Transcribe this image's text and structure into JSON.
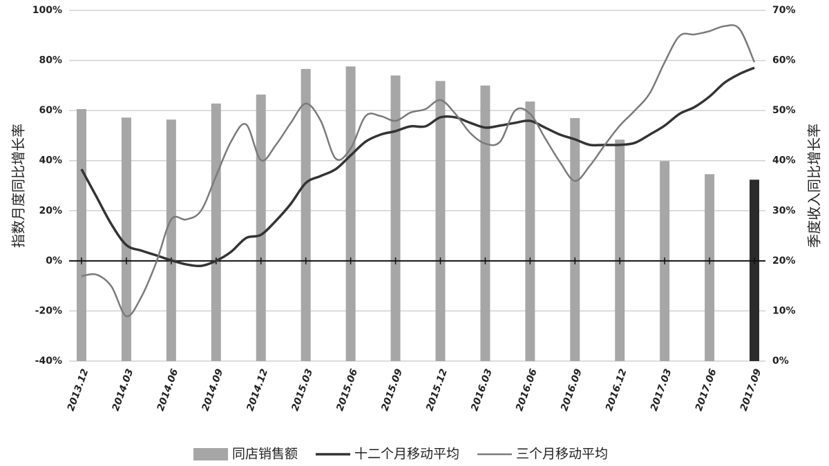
{
  "chart_data": {
    "type": "combo",
    "y_label": "指数月度同比增长率",
    "y2_label": "季度收入同比增长率",
    "categories": [
      "2013.12",
      null,
      null,
      "2014.03",
      null,
      null,
      "2014.06",
      null,
      null,
      "2014.09",
      null,
      null,
      "2014.12",
      null,
      null,
      "2015.03",
      null,
      null,
      "2015.06",
      null,
      null,
      "2015.09",
      null,
      null,
      "2015.12",
      null,
      null,
      "2016.03",
      null,
      null,
      "2016.06",
      null,
      null,
      "2016.09",
      null,
      null,
      "2016.12",
      null,
      null,
      "2017.03",
      null,
      null,
      "2017.06",
      null,
      null,
      "2017.09"
    ],
    "series": [
      {
        "name": "同店销售额",
        "type": "bar",
        "axis": "y2",
        "color": "#a6a6a6",
        "values": [
          50.3,
          null,
          null,
          48.6,
          null,
          null,
          48.2,
          null,
          null,
          51.4,
          null,
          null,
          53.2,
          null,
          null,
          58.3,
          null,
          null,
          58.8,
          null,
          null,
          57.0,
          null,
          null,
          55.9,
          null,
          null,
          55.0,
          null,
          null,
          51.8,
          null,
          null,
          48.5,
          null,
          null,
          44.2,
          null,
          null,
          39.9,
          null,
          null,
          37.3,
          null,
          null,
          36.2
        ],
        "colors": [
          "#a6a6a6",
          null,
          null,
          "#a6a6a6",
          null,
          null,
          "#a6a6a6",
          null,
          null,
          "#a6a6a6",
          null,
          null,
          "#a6a6a6",
          null,
          null,
          "#a6a6a6",
          null,
          null,
          "#a6a6a6",
          null,
          null,
          "#a6a6a6",
          null,
          null,
          "#a6a6a6",
          null,
          null,
          "#a6a6a6",
          null,
          null,
          "#a6a6a6",
          null,
          null,
          "#a6a6a6",
          null,
          null,
          "#a6a6a6",
          null,
          null,
          "#a6a6a6",
          null,
          null,
          "#a6a6a6",
          null,
          null,
          "#2b2b2b"
        ]
      },
      {
        "name": "十二个月移动平均",
        "type": "line",
        "color": "#333333",
        "values": [
          36.6,
          25.6,
          14.6,
          6.3,
          4.1,
          2.2,
          0.2,
          -1.4,
          -2,
          0,
          3.6,
          9.1,
          10.4,
          16,
          22.8,
          31.1,
          33.9,
          36.6,
          42.1,
          47.6,
          50.4,
          51.8,
          53.7,
          53.7,
          57.3,
          57.3,
          55.1,
          53.2,
          54,
          55.1,
          55.9,
          53.2,
          50.4,
          48.5,
          46.3,
          46.3,
          46.3,
          47.1,
          50.4,
          54,
          58.7,
          61.4,
          65.6,
          71.1,
          74.6,
          77.1
        ]
      },
      {
        "name": "三个月移动平均",
        "type": "line",
        "color": "#7a7a7a",
        "values": [
          -6.1,
          -5.5,
          -10.2,
          -22.1,
          -14.4,
          -0.6,
          16.5,
          16.5,
          20.1,
          33.9,
          47.6,
          54.5,
          40.2,
          46.3,
          55.1,
          62.8,
          55.9,
          40.8,
          44.9,
          57.8,
          57.8,
          55.9,
          59.2,
          60.6,
          64.2,
          58.7,
          51,
          46.8,
          47.6,
          60,
          58.7,
          49,
          39.4,
          31.9,
          38,
          46.3,
          54,
          60,
          66.9,
          79.3,
          89.8,
          90.4,
          91.7,
          93.7,
          92.6,
          79.3
        ]
      }
    ],
    "ylim": [
      -40,
      100
    ],
    "yticks": [
      {
        "value": -40,
        "label": "-40%"
      },
      {
        "value": -20,
        "label": "-20%"
      },
      {
        "value": 0,
        "label": "0%"
      },
      {
        "value": 20,
        "label": "20%"
      },
      {
        "value": 40,
        "label": "40%"
      },
      {
        "value": 60,
        "label": "60%"
      },
      {
        "value": 80,
        "label": "80%"
      },
      {
        "value": 100,
        "label": "100%"
      }
    ],
    "y2lim": [
      0,
      70
    ],
    "y2ticks": [
      {
        "value": 0,
        "label": "0%"
      },
      {
        "value": 10,
        "label": "10%"
      },
      {
        "value": 20,
        "label": "20%"
      },
      {
        "value": 30,
        "label": "30%"
      },
      {
        "value": 40,
        "label": "40%"
      },
      {
        "value": 50,
        "label": "50%"
      },
      {
        "value": 60,
        "label": "60%"
      },
      {
        "value": 70,
        "label": "70%"
      }
    ],
    "grid": true
  }
}
